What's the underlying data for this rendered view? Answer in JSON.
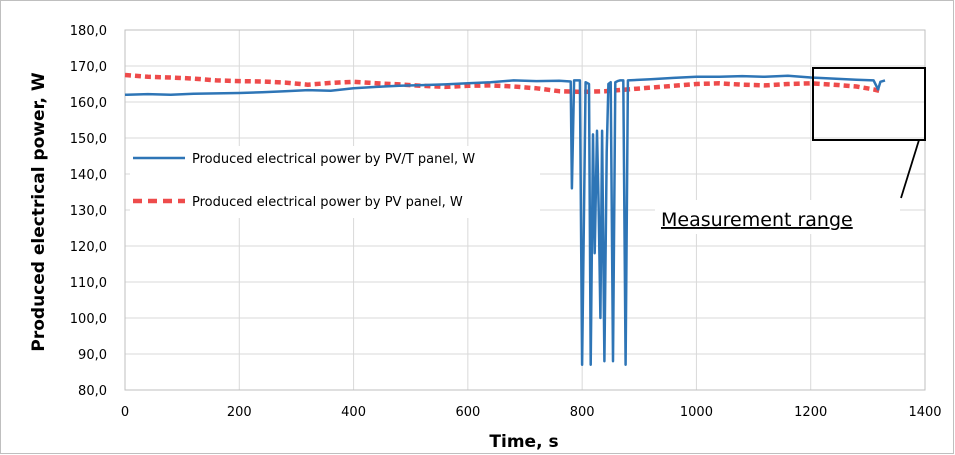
{
  "chart_data": {
    "type": "line",
    "xlabel": "Time, s",
    "ylabel": "Produced electrical power, W",
    "xlim": [
      0,
      1400
    ],
    "ylim": [
      80,
      180
    ],
    "x_ticks": [
      "0",
      "200",
      "400",
      "600",
      "800",
      "1000",
      "1200",
      "1400"
    ],
    "y_ticks": [
      "80,0",
      "90,0",
      "100,0",
      "110,0",
      "120,0",
      "130,0",
      "140,0",
      "150,0",
      "160,0",
      "170,0",
      "180,0"
    ],
    "grid": true,
    "legend_position": "left",
    "series": [
      {
        "name": "Produced electrical power by PV/T panel, W",
        "color": "#2e75b6",
        "style": "solid",
        "points": [
          [
            0,
            162.0
          ],
          [
            40,
            162.2
          ],
          [
            80,
            162.0
          ],
          [
            120,
            162.3
          ],
          [
            160,
            162.4
          ],
          [
            200,
            162.5
          ],
          [
            240,
            162.7
          ],
          [
            280,
            163.0
          ],
          [
            320,
            163.3
          ],
          [
            360,
            163.1
          ],
          [
            400,
            163.8
          ],
          [
            440,
            164.2
          ],
          [
            480,
            164.5
          ],
          [
            520,
            164.7
          ],
          [
            560,
            164.9
          ],
          [
            600,
            165.2
          ],
          [
            640,
            165.5
          ],
          [
            680,
            166.0
          ],
          [
            720,
            165.8
          ],
          [
            760,
            165.9
          ],
          [
            780,
            165.7
          ],
          [
            782,
            136.0
          ],
          [
            786,
            166.0
          ],
          [
            796,
            166.0
          ],
          [
            800,
            87.0
          ],
          [
            806,
            165.5
          ],
          [
            812,
            165.0
          ],
          [
            815,
            87.0
          ],
          [
            819,
            151.0
          ],
          [
            822,
            118.0
          ],
          [
            826,
            152.0
          ],
          [
            829,
            130.0
          ],
          [
            832,
            100.0
          ],
          [
            835,
            152.0
          ],
          [
            839,
            88.0
          ],
          [
            843,
            146.0
          ],
          [
            846,
            165.0
          ],
          [
            850,
            165.5
          ],
          [
            854,
            88.0
          ],
          [
            858,
            165.5
          ],
          [
            862,
            165.8
          ],
          [
            866,
            166.0
          ],
          [
            872,
            166.0
          ],
          [
            876,
            87.0
          ],
          [
            880,
            166.0
          ],
          [
            920,
            166.3
          ],
          [
            960,
            166.7
          ],
          [
            1000,
            167.0
          ],
          [
            1040,
            167.0
          ],
          [
            1080,
            167.2
          ],
          [
            1120,
            167.0
          ],
          [
            1160,
            167.3
          ],
          [
            1200,
            166.8
          ],
          [
            1240,
            166.5
          ],
          [
            1280,
            166.2
          ],
          [
            1310,
            166.0
          ],
          [
            1318,
            163.5
          ],
          [
            1322,
            165.6
          ],
          [
            1330,
            166.0
          ]
        ]
      },
      {
        "name": "Produced electrical power by PV panel, W",
        "color": "#ee4b4b",
        "style": "dashed",
        "points": [
          [
            0,
            167.5
          ],
          [
            40,
            167.0
          ],
          [
            80,
            166.8
          ],
          [
            120,
            166.5
          ],
          [
            160,
            166.0
          ],
          [
            200,
            165.8
          ],
          [
            240,
            165.7
          ],
          [
            280,
            165.4
          ],
          [
            320,
            164.8
          ],
          [
            360,
            165.3
          ],
          [
            400,
            165.6
          ],
          [
            440,
            165.2
          ],
          [
            480,
            164.9
          ],
          [
            520,
            164.5
          ],
          [
            560,
            164.2
          ],
          [
            600,
            164.5
          ],
          [
            640,
            164.6
          ],
          [
            680,
            164.3
          ],
          [
            720,
            163.8
          ],
          [
            760,
            163.0
          ],
          [
            800,
            162.8
          ],
          [
            840,
            163.0
          ],
          [
            880,
            163.5
          ],
          [
            920,
            164.0
          ],
          [
            960,
            164.5
          ],
          [
            1000,
            165.0
          ],
          [
            1040,
            165.2
          ],
          [
            1080,
            164.8
          ],
          [
            1120,
            164.6
          ],
          [
            1160,
            165.0
          ],
          [
            1200,
            165.2
          ],
          [
            1240,
            164.8
          ],
          [
            1280,
            164.3
          ],
          [
            1310,
            163.5
          ],
          [
            1322,
            163.0
          ]
        ]
      }
    ],
    "annotations": [
      {
        "text": "Measurement range",
        "x_range": [
          1200,
          1400
        ],
        "y_range": [
          149,
          169
        ]
      }
    ]
  }
}
